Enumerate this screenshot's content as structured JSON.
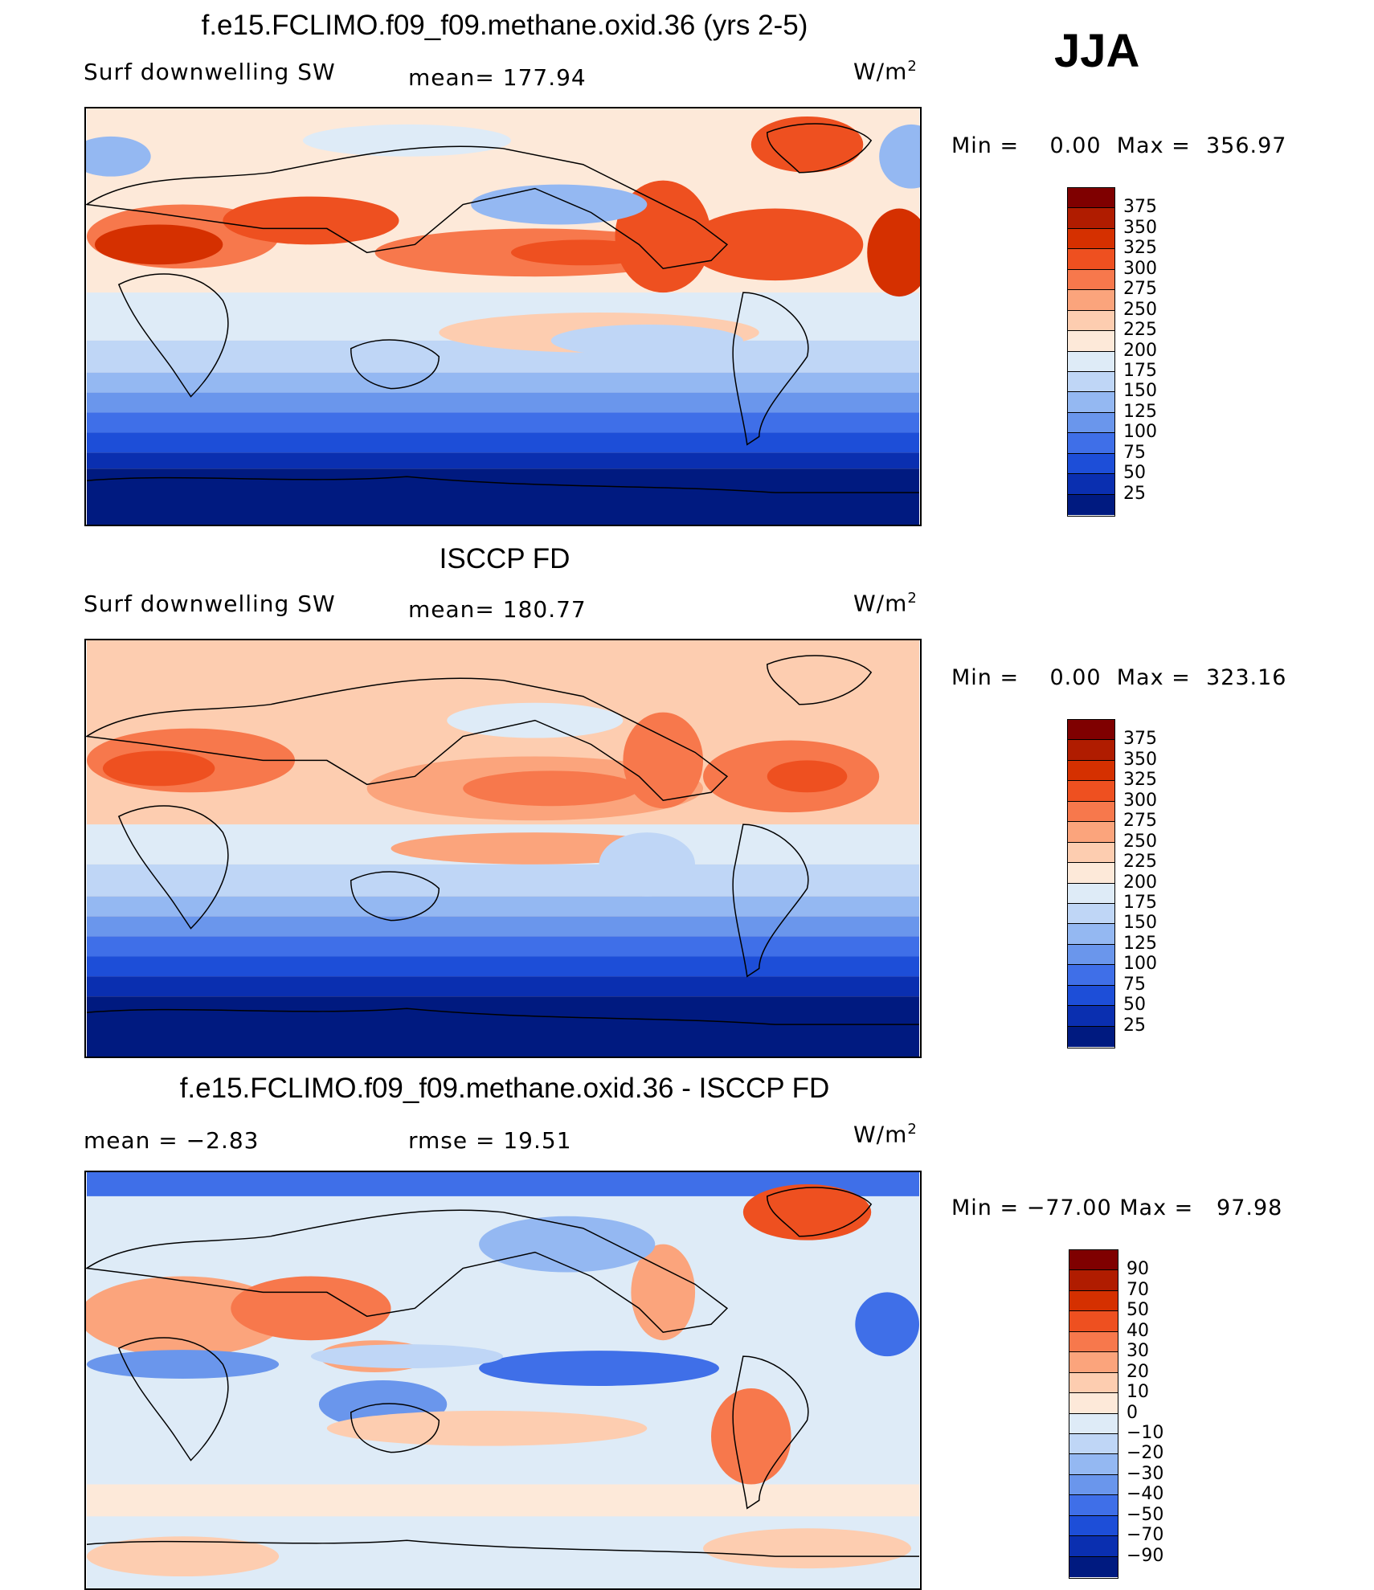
{
  "season": "JJA",
  "panels": [
    {
      "title": "f.e15.FCLIMO.f09_f09.methane.oxid.36 (yrs 2-5)",
      "left_label": "Surf downwelling SW",
      "center_label": "mean= 177.94",
      "units": "W/m",
      "units_sup": "2",
      "min_label": "Min =",
      "min_value": "0.00",
      "max_label": "Max =",
      "max_value": "356.97",
      "kind": "abs",
      "colorbar_labels": [
        "375",
        "350",
        "325",
        "300",
        "275",
        "250",
        "225",
        "200",
        "175",
        "150",
        "125",
        "100",
        "75",
        "50",
        "25"
      ]
    },
    {
      "title": "ISCCP FD",
      "left_label": "Surf downwelling SW",
      "center_label": "mean= 180.77",
      "units": "W/m",
      "units_sup": "2",
      "min_label": "Min =",
      "min_value": "0.00",
      "max_label": "Max =",
      "max_value": "323.16",
      "kind": "abs",
      "colorbar_labels": [
        "375",
        "350",
        "325",
        "300",
        "275",
        "250",
        "225",
        "200",
        "175",
        "150",
        "125",
        "100",
        "75",
        "50",
        "25"
      ]
    },
    {
      "title": "f.e15.FCLIMO.f09_f09.methane.oxid.36 - ISCCP FD",
      "left_label": "mean =   −2.83",
      "center_label": "rmse =   19.51",
      "units": "W/m",
      "units_sup": "2",
      "min_label": "Min =",
      "min_value": "−77.00",
      "max_label": "Max =",
      "max_value": "97.98",
      "kind": "diff",
      "colorbar_labels": [
        "90",
        "70",
        "50",
        "40",
        "30",
        "20",
        "10",
        "0",
        "−10",
        "−20",
        "−30",
        "−40",
        "−50",
        "−70",
        "−90"
      ]
    }
  ],
  "colors": {
    "abs_scale": [
      "#7f0000",
      "#b01c00",
      "#d53000",
      "#ee5020",
      "#f7784c",
      "#fba47c",
      "#fdcdb0",
      "#fde9d9",
      "#deebf7",
      "#bfd6f6",
      "#94b8f2",
      "#6a96ec",
      "#3f6fe8",
      "#1d4ed8",
      "#0a2fb0",
      "#001a80"
    ],
    "diff_scale": [
      "#7f0000",
      "#b01c00",
      "#d53000",
      "#ee5020",
      "#f7784c",
      "#fba47c",
      "#fdcdb0",
      "#fde9d9",
      "#deebf7",
      "#bfd6f6",
      "#94b8f2",
      "#6a96ec",
      "#3f6fe8",
      "#1d4ed8",
      "#0a2fb0",
      "#001a80"
    ]
  }
}
